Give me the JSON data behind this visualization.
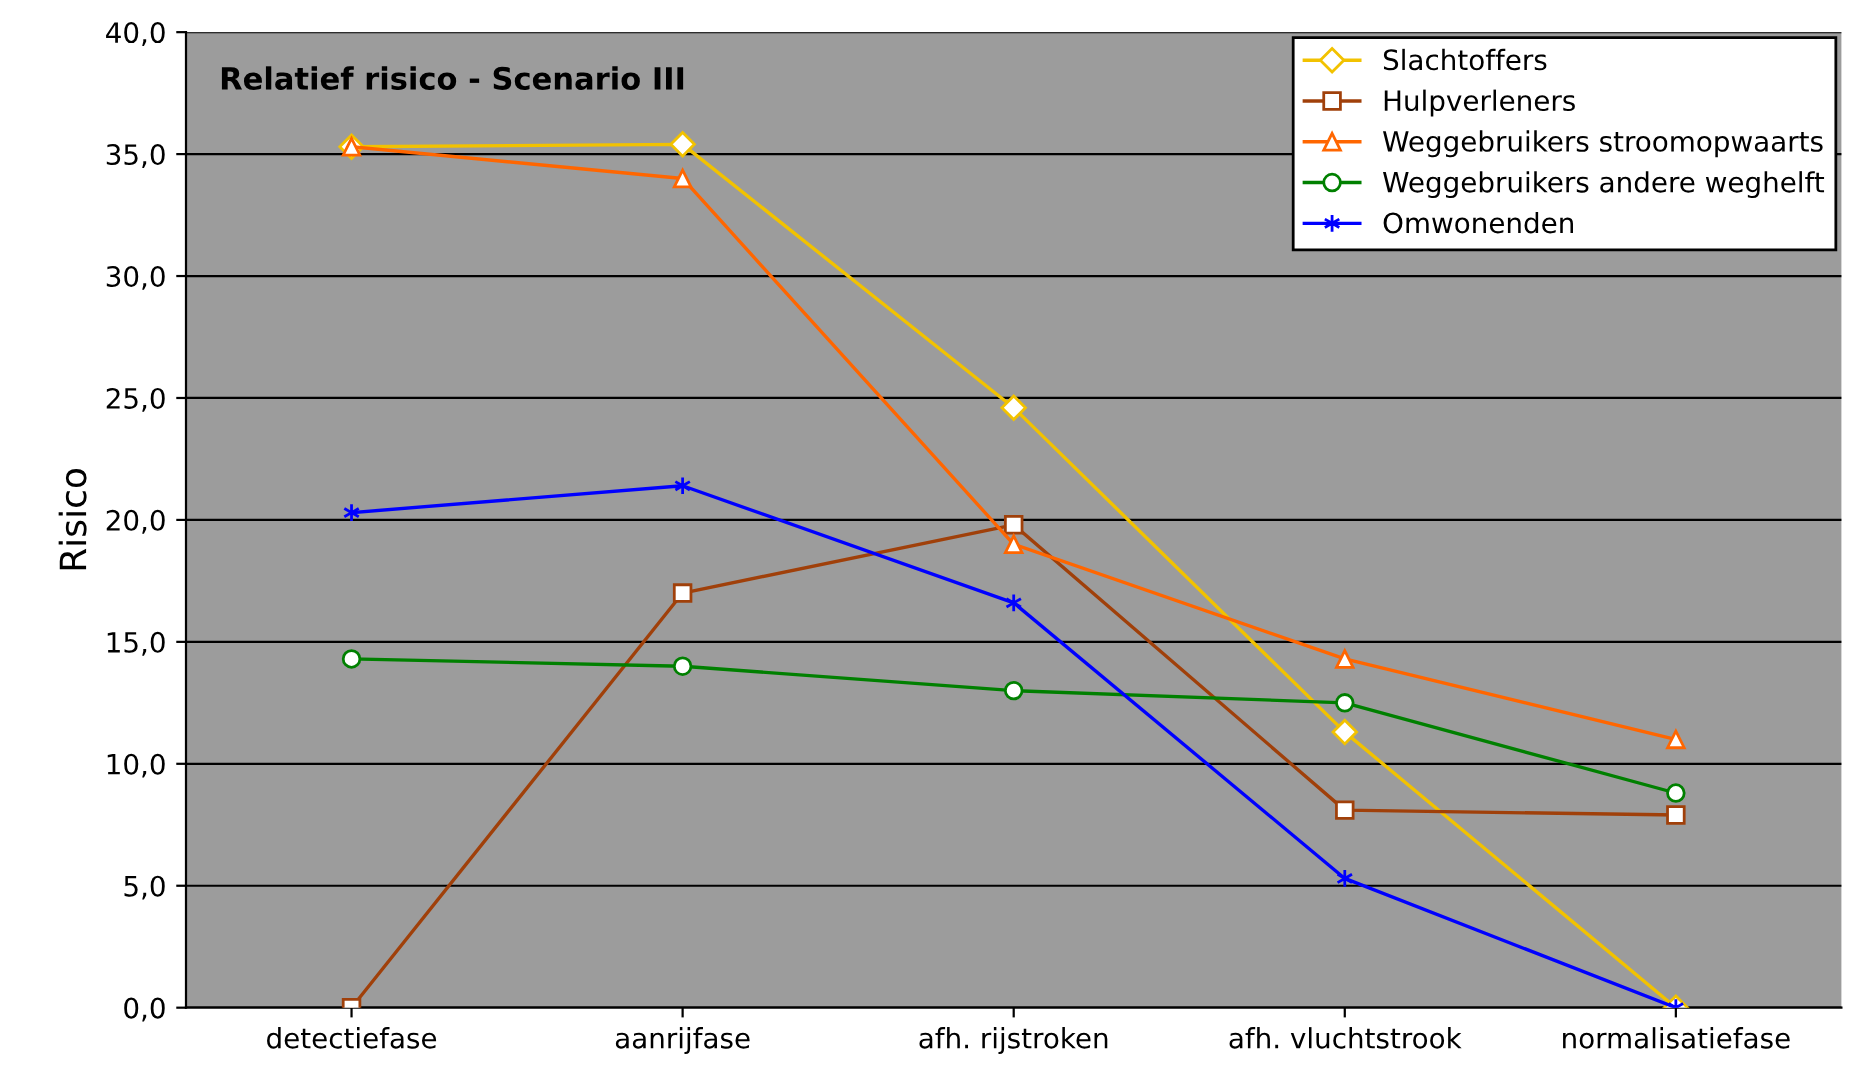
{
  "chart_data": {
    "type": "line",
    "title": "Relatief risico - Scenario III",
    "ylabel": "Risico",
    "categories": [
      "detectiefase",
      "aanrijfase",
      "afh. rijstroken",
      "afh. vluchtstrook",
      "normalisatiefase"
    ],
    "series": [
      {
        "name": "Slachtoffers",
        "color": "#f2c200",
        "marker": "diamond",
        "values": [
          35.3,
          35.4,
          24.6,
          11.3,
          0
        ]
      },
      {
        "name": "Hulpverleners",
        "color": "#a0400a",
        "marker": "square",
        "values": [
          0,
          17.0,
          19.8,
          8.1,
          7.9
        ]
      },
      {
        "name": "Weggebruikers stroomopwaarts",
        "color": "#ff6600",
        "marker": "triangle",
        "values": [
          35.3,
          34.0,
          19.0,
          14.3,
          11.0
        ]
      },
      {
        "name": "Weggebruikers andere weghelft",
        "color": "#008000",
        "marker": "circle",
        "values": [
          14.3,
          14.0,
          13.0,
          12.5,
          8.8
        ]
      },
      {
        "name": "Omwonenden",
        "color": "#0000ff",
        "marker": "cross",
        "values": [
          20.3,
          21.4,
          16.6,
          5.3,
          0
        ]
      }
    ],
    "ylim": [
      0,
      40
    ],
    "yticks": [
      {
        "value": 0,
        "label": "0,0"
      },
      {
        "value": 5,
        "label": "5,0"
      },
      {
        "value": 10,
        "label": "10,0"
      },
      {
        "value": 15,
        "label": "15,0"
      },
      {
        "value": 20,
        "label": "20,0"
      },
      {
        "value": 25,
        "label": "25,0"
      },
      {
        "value": 30,
        "label": "30,0"
      },
      {
        "value": 35,
        "label": "35,0"
      },
      {
        "value": 40,
        "label": "40,0"
      }
    ],
    "grid": "y",
    "legend": "top right",
    "line_style": "solid"
  }
}
